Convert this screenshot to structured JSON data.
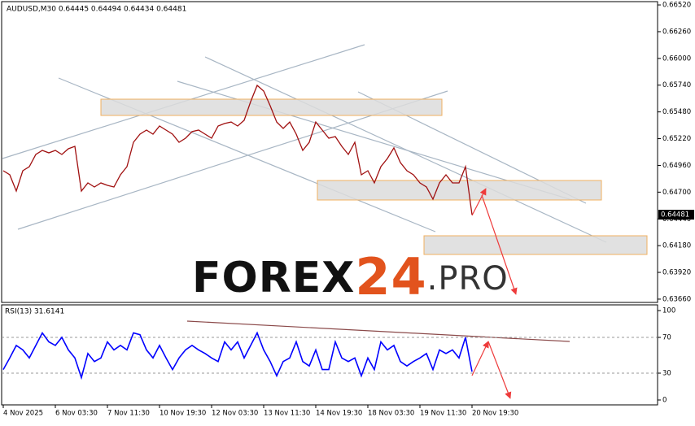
{
  "watermark": {
    "brand": "FOREX",
    "number": "24",
    "suffix": ".PRO"
  },
  "chart_data": [
    {
      "type": "line",
      "title": "AUDUSD,M30  0.64445 0.64494 0.64434 0.64481",
      "color": "#a01010",
      "ylim": [
        0.63628,
        0.66552
      ],
      "yticks": [
        {
          "value": 0.6652,
          "label": "0.66520"
        },
        {
          "value": 0.6626,
          "label": "0.66260"
        },
        {
          "value": 0.66,
          "label": "0.66000"
        },
        {
          "value": 0.6574,
          "label": "0.65740"
        },
        {
          "value": 0.6548,
          "label": "0.65480"
        },
        {
          "value": 0.6522,
          "label": "0.65220"
        },
        {
          "value": 0.6496,
          "label": "0.64960"
        },
        {
          "value": 0.647,
          "label": "0.64700"
        },
        {
          "value": 0.6444,
          "label": "0.64440"
        },
        {
          "value": 0.6418,
          "label": "0.64180"
        },
        {
          "value": 0.6392,
          "label": "0.63920"
        },
        {
          "value": 0.6366,
          "label": "0.63660"
        }
      ],
      "last_price": 0.64481,
      "values": [
        0.64908,
        0.64869,
        0.64711,
        0.64908,
        0.64948,
        0.65066,
        0.65106,
        0.65082,
        0.65106,
        0.65066,
        0.65122,
        0.65145,
        0.64711,
        0.6479,
        0.6475,
        0.6479,
        0.64766,
        0.6475,
        0.64869,
        0.64948,
        0.65185,
        0.65264,
        0.65303,
        0.65264,
        0.65343,
        0.65303,
        0.65264,
        0.65185,
        0.65224,
        0.65288,
        0.65303,
        0.65264,
        0.65224,
        0.65343,
        0.65367,
        0.65382,
        0.65343,
        0.65398,
        0.6558,
        0.65738,
        0.65683,
        0.6554,
        0.65382,
        0.65319,
        0.65382,
        0.65264,
        0.65106,
        0.65185,
        0.65382,
        0.65303,
        0.65224,
        0.6524,
        0.65145,
        0.65066,
        0.65185,
        0.64869,
        0.64908,
        0.6479,
        0.64948,
        0.65027,
        0.6513,
        0.64987,
        0.64908,
        0.64869,
        0.6479,
        0.6475,
        0.64632,
        0.6479,
        0.64869,
        0.6479,
        0.6479,
        0.64948,
        0.64481,
        null,
        null,
        null,
        null,
        null,
        null,
        null,
        null,
        null,
        null,
        null,
        null,
        null,
        null,
        null,
        null,
        null,
        null,
        null,
        null,
        null,
        null,
        null,
        null,
        null,
        null,
        null,
        null
      ]
    },
    {
      "type": "line",
      "title": "RSI(13) 31.6141",
      "color": "#0000ff",
      "ylim": [
        0,
        100
      ],
      "yticks": [
        100,
        70,
        30,
        0
      ],
      "grid_levels": [
        70,
        30
      ],
      "categories": [
        "4 Nov 2025",
        null,
        null,
        null,
        null,
        null,
        null,
        null,
        "6 Nov 03:30",
        null,
        null,
        null,
        null,
        null,
        null,
        null,
        "7 Nov 11:30",
        null,
        null,
        null,
        null,
        null,
        null,
        null,
        "10 Nov 19:30",
        null,
        null,
        null,
        null,
        null,
        null,
        null,
        "12 Nov 03:30",
        null,
        null,
        null,
        null,
        null,
        null,
        null,
        "13 Nov 11:30",
        null,
        null,
        null,
        null,
        null,
        null,
        null,
        "14 Nov 19:30",
        null,
        null,
        null,
        null,
        null,
        null,
        null,
        "18 Nov 03:30",
        null,
        null,
        null,
        null,
        null,
        null,
        null,
        "19 Nov 11:30",
        null,
        null,
        null,
        null,
        null,
        null,
        null,
        "20 Nov 19:30",
        null,
        null,
        null,
        null,
        null,
        null,
        null,
        null,
        null,
        null,
        null,
        null,
        null,
        null,
        null,
        null,
        null,
        null,
        null,
        null,
        null,
        null,
        null,
        null,
        null,
        null,
        null,
        null
      ],
      "values": [
        34,
        47,
        61,
        56,
        47,
        61,
        75,
        65,
        61,
        70,
        56,
        47,
        25,
        52,
        43,
        47,
        65,
        56,
        61,
        56,
        75,
        73,
        56,
        47,
        61,
        47,
        34,
        47,
        56,
        61,
        56,
        52,
        47,
        43,
        65,
        56,
        65,
        47,
        61,
        75,
        56,
        43,
        27,
        43,
        47,
        65,
        43,
        38,
        56,
        34,
        34,
        65,
        47,
        43,
        47,
        27,
        47,
        34,
        65,
        56,
        61,
        43,
        38,
        43,
        47,
        52,
        34,
        56,
        52,
        56,
        47,
        70,
        31.6141,
        null,
        null,
        null,
        null,
        null,
        null,
        null,
        null,
        null,
        null,
        null,
        null,
        null,
        null,
        null,
        null,
        null,
        null,
        null,
        null,
        null,
        null,
        null,
        null,
        null,
        null,
        null,
        null
      ]
    }
  ]
}
